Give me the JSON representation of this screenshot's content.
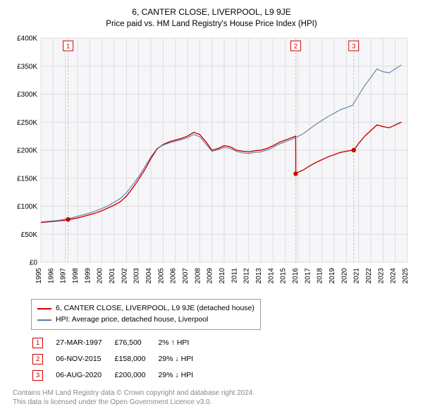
{
  "title": "6, CANTER CLOSE, LIVERPOOL, L9 9JE",
  "subtitle": "Price paid vs. HM Land Registry's House Price Index (HPI)",
  "chart": {
    "type": "line",
    "background_color": "#ffffff",
    "plot_background_color": "#f6f6f8",
    "grid_color": "#dcdce0",
    "axis_color": "#333333",
    "tick_font_size": 10,
    "y_axis": {
      "min": 0,
      "max": 400000,
      "step": 50000,
      "tick_labels": [
        "£0",
        "£50K",
        "£100K",
        "£150K",
        "£200K",
        "£250K",
        "£300K",
        "£350K",
        "£400K"
      ]
    },
    "x_axis": {
      "min": 1995,
      "max": 2025,
      "step": 1,
      "tick_labels": [
        "1995",
        "1996",
        "1997",
        "1998",
        "1999",
        "2000",
        "2001",
        "2002",
        "2003",
        "2004",
        "2005",
        "2006",
        "2007",
        "2008",
        "2009",
        "2010",
        "2011",
        "2012",
        "2013",
        "2014",
        "2015",
        "2016",
        "2017",
        "2018",
        "2019",
        "2020",
        "2021",
        "2022",
        "2023",
        "2024",
        "2025"
      ],
      "label_rotation": -90
    },
    "series": [
      {
        "name": "property_price",
        "label": "6, CANTER CLOSE, LIVERPOOL, L9 9JE (detached house)",
        "color": "#cc0000",
        "line_width": 1.4,
        "data": [
          [
            1995.0,
            71000
          ],
          [
            1995.5,
            72000
          ],
          [
            1996.0,
            73000
          ],
          [
            1996.5,
            74000
          ],
          [
            1997.0,
            75000
          ],
          [
            1997.23,
            76500
          ],
          [
            1997.5,
            77000
          ],
          [
            1998.0,
            79000
          ],
          [
            1998.5,
            82000
          ],
          [
            1999.0,
            85000
          ],
          [
            1999.5,
            88000
          ],
          [
            2000.0,
            92000
          ],
          [
            2000.5,
            97000
          ],
          [
            2001.0,
            102000
          ],
          [
            2001.5,
            108000
          ],
          [
            2002.0,
            118000
          ],
          [
            2002.5,
            132000
          ],
          [
            2003.0,
            148000
          ],
          [
            2003.5,
            165000
          ],
          [
            2004.0,
            185000
          ],
          [
            2004.5,
            202000
          ],
          [
            2005.0,
            210000
          ],
          [
            2005.5,
            215000
          ],
          [
            2006.0,
            218000
          ],
          [
            2006.5,
            221000
          ],
          [
            2007.0,
            225000
          ],
          [
            2007.5,
            232000
          ],
          [
            2008.0,
            228000
          ],
          [
            2008.5,
            215000
          ],
          [
            2009.0,
            200000
          ],
          [
            2009.5,
            203000
          ],
          [
            2010.0,
            208000
          ],
          [
            2010.5,
            206000
          ],
          [
            2011.0,
            200000
          ],
          [
            2011.5,
            198000
          ],
          [
            2012.0,
            197000
          ],
          [
            2012.5,
            199000
          ],
          [
            2013.0,
            200000
          ],
          [
            2013.5,
            203000
          ],
          [
            2014.0,
            208000
          ],
          [
            2014.5,
            214000
          ],
          [
            2015.0,
            218000
          ],
          [
            2015.5,
            222000
          ],
          [
            2015.85,
            225000
          ],
          [
            2015.86,
            158000
          ],
          [
            2016.0,
            160000
          ],
          [
            2016.5,
            165000
          ],
          [
            2017.0,
            172000
          ],
          [
            2017.5,
            178000
          ],
          [
            2018.0,
            183000
          ],
          [
            2018.5,
            188000
          ],
          [
            2019.0,
            192000
          ],
          [
            2019.5,
            196000
          ],
          [
            2020.0,
            198000
          ],
          [
            2020.5,
            200000
          ],
          [
            2020.6,
            200000
          ],
          [
            2021.0,
            212000
          ],
          [
            2021.5,
            225000
          ],
          [
            2022.0,
            235000
          ],
          [
            2022.5,
            245000
          ],
          [
            2023.0,
            242000
          ],
          [
            2023.5,
            240000
          ],
          [
            2024.0,
            245000
          ],
          [
            2024.5,
            250000
          ]
        ]
      },
      {
        "name": "hpi",
        "label": "HPI: Average price, detached house, Liverpool",
        "color": "#5b7ca8",
        "line_width": 1.1,
        "data": [
          [
            1995.0,
            72000
          ],
          [
            1995.5,
            73000
          ],
          [
            1996.0,
            74000
          ],
          [
            1996.5,
            75000
          ],
          [
            1997.0,
            77000
          ],
          [
            1997.5,
            79000
          ],
          [
            1998.0,
            82000
          ],
          [
            1998.5,
            85000
          ],
          [
            1999.0,
            88000
          ],
          [
            1999.5,
            92000
          ],
          [
            2000.0,
            96000
          ],
          [
            2000.5,
            101000
          ],
          [
            2001.0,
            107000
          ],
          [
            2001.5,
            114000
          ],
          [
            2002.0,
            124000
          ],
          [
            2002.5,
            138000
          ],
          [
            2003.0,
            153000
          ],
          [
            2003.5,
            170000
          ],
          [
            2004.0,
            188000
          ],
          [
            2004.5,
            203000
          ],
          [
            2005.0,
            209000
          ],
          [
            2005.5,
            213000
          ],
          [
            2006.0,
            216000
          ],
          [
            2006.5,
            219000
          ],
          [
            2007.0,
            222000
          ],
          [
            2007.5,
            228000
          ],
          [
            2008.0,
            224000
          ],
          [
            2008.5,
            211000
          ],
          [
            2009.0,
            198000
          ],
          [
            2009.5,
            201000
          ],
          [
            2010.0,
            205000
          ],
          [
            2010.5,
            203000
          ],
          [
            2011.0,
            198000
          ],
          [
            2011.5,
            195000
          ],
          [
            2012.0,
            194000
          ],
          [
            2012.5,
            196000
          ],
          [
            2013.0,
            197000
          ],
          [
            2013.5,
            200000
          ],
          [
            2014.0,
            205000
          ],
          [
            2014.5,
            211000
          ],
          [
            2015.0,
            215000
          ],
          [
            2015.5,
            219000
          ],
          [
            2016.0,
            224000
          ],
          [
            2016.5,
            230000
          ],
          [
            2017.0,
            238000
          ],
          [
            2017.5,
            246000
          ],
          [
            2018.0,
            253000
          ],
          [
            2018.5,
            260000
          ],
          [
            2019.0,
            266000
          ],
          [
            2019.5,
            272000
          ],
          [
            2020.0,
            276000
          ],
          [
            2020.5,
            280000
          ],
          [
            2021.0,
            298000
          ],
          [
            2021.5,
            315000
          ],
          [
            2022.0,
            330000
          ],
          [
            2022.5,
            345000
          ],
          [
            2023.0,
            340000
          ],
          [
            2023.5,
            338000
          ],
          [
            2024.0,
            345000
          ],
          [
            2024.5,
            352000
          ]
        ]
      }
    ],
    "sale_markers": [
      {
        "id": "1",
        "year": 1997.23,
        "price": 76500
      },
      {
        "id": "2",
        "year": 2015.85,
        "price": 158000
      },
      {
        "id": "3",
        "year": 2020.6,
        "price": 200000
      }
    ],
    "marker_line_color": "#c8c8cc",
    "marker_label_border": "#cc0000",
    "marker_label_color": "#cc0000",
    "marker_point_color": "#cc0000"
  },
  "legend": {
    "series1": "6, CANTER CLOSE, LIVERPOOL, L9 9JE (detached house)",
    "series1_color": "#cc0000",
    "series2": "HPI: Average price, detached house, Liverpool",
    "series2_color": "#5b7ca8"
  },
  "marker_rows": [
    {
      "id": "1",
      "date": "27-MAR-1997",
      "price": "£76,500",
      "pct": "2% ↑ HPI"
    },
    {
      "id": "2",
      "date": "06-NOV-2015",
      "price": "£158,000",
      "pct": "29% ↓ HPI"
    },
    {
      "id": "3",
      "date": "06-AUG-2020",
      "price": "£200,000",
      "pct": "29% ↓ HPI"
    }
  ],
  "footer_line1": "Contains HM Land Registry data © Crown copyright and database right 2024.",
  "footer_line2": "This data is licensed under the Open Government Licence v3.0."
}
